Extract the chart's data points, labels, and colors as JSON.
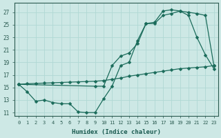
{
  "line_zigzag": {
    "x": [
      0,
      1,
      2,
      3,
      4,
      5,
      6,
      7,
      8,
      9,
      10,
      11,
      12,
      13,
      14,
      15,
      16,
      17,
      18,
      19,
      20,
      21,
      22,
      23
    ],
    "y": [
      15.5,
      14.3,
      12.8,
      13.0,
      12.6,
      12.4,
      12.4,
      11.1,
      11.0,
      11.0,
      13.2,
      15.2,
      18.5,
      19.0,
      22.5,
      25.2,
      25.2,
      26.5,
      26.8,
      27.2,
      27.0,
      26.8,
      26.5,
      18.5
    ]
  },
  "line_diagonal": {
    "x": [
      0,
      1,
      2,
      3,
      4,
      5,
      6,
      7,
      8,
      9,
      10,
      11,
      12,
      13,
      14,
      15,
      16,
      17,
      18,
      19,
      20,
      21,
      22,
      23
    ],
    "y": [
      15.5,
      15.6,
      15.65,
      15.7,
      15.75,
      15.8,
      15.85,
      15.9,
      15.95,
      16.0,
      16.1,
      16.3,
      16.5,
      16.8,
      17.0,
      17.2,
      17.4,
      17.6,
      17.8,
      18.0,
      18.1,
      18.2,
      18.3,
      18.5
    ]
  },
  "line_peaked": {
    "x": [
      0,
      9,
      10,
      11,
      12,
      13,
      14,
      15,
      16,
      17,
      18,
      19,
      20,
      21,
      22,
      23
    ],
    "y": [
      15.5,
      15.2,
      15.2,
      18.5,
      20.0,
      20.5,
      22.0,
      25.2,
      25.4,
      27.2,
      27.4,
      27.2,
      26.5,
      23.0,
      20.2,
      18.0
    ]
  },
  "xlabel": "Humidex (Indice chaleur)",
  "xlim": [
    -0.5,
    23.5
  ],
  "ylim": [
    10.5,
    28.5
  ],
  "yticks": [
    11,
    13,
    15,
    17,
    19,
    21,
    23,
    25,
    27
  ],
  "xticks": [
    0,
    1,
    2,
    3,
    4,
    5,
    6,
    7,
    8,
    9,
    10,
    11,
    12,
    13,
    14,
    15,
    16,
    17,
    18,
    19,
    20,
    21,
    22,
    23
  ],
  "bg_color": "#cde8e5",
  "grid_color": "#b0d8d4",
  "line_color": "#1a6b5a",
  "tick_color": "#2a5a50",
  "label_color": "#1a5a50"
}
